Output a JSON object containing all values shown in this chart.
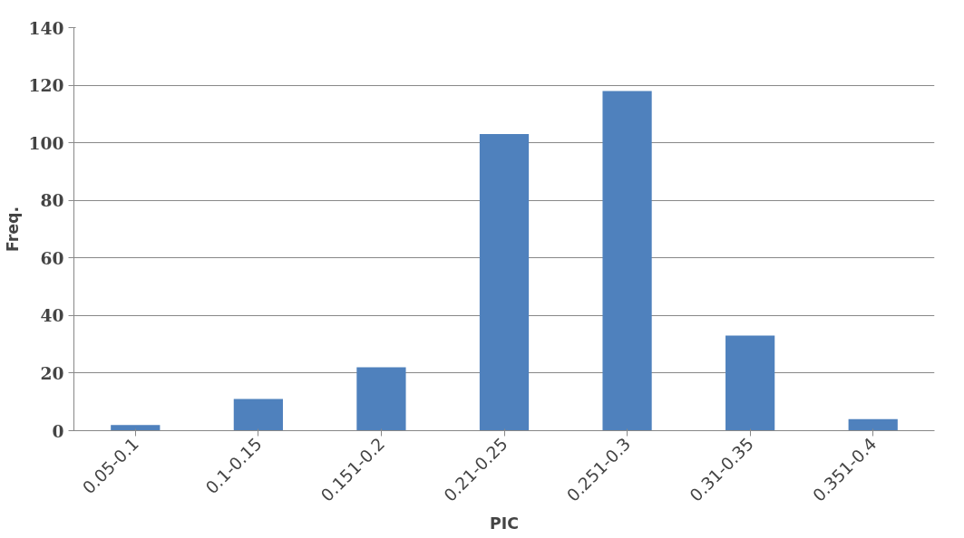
{
  "chart_data": {
    "type": "bar",
    "xlabel": "PIC",
    "ylabel": "Freq.",
    "categories": [
      "0.05-0.1",
      "0.1-0.15",
      "0.151-0.2",
      "0.21-0.25",
      "0.251-0.3",
      "0.31-0.35",
      "0.351-0.4"
    ],
    "values": [
      2,
      11,
      22,
      103,
      118,
      33,
      4
    ],
    "color": "#4f81bd",
    "ylim": [
      0,
      140
    ],
    "yticks": [
      0,
      20,
      40,
      60,
      80,
      100,
      120,
      140
    ],
    "grid": "y"
  }
}
